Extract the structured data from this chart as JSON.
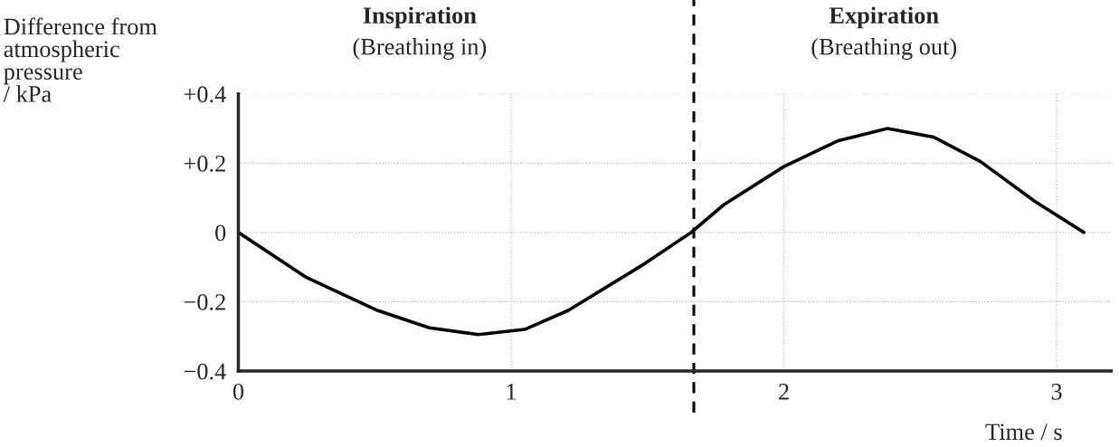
{
  "chart_data": {
    "type": "line",
    "ylabel": "Difference from\natmospheric\npressure\n/ kPa",
    "xlabel": "Time / s",
    "annotations": [
      "Inspiration\n(Breathing in)",
      "Expiration\n(Breathing out)"
    ],
    "x": [
      0,
      0.25,
      0.51,
      0.7,
      0.88,
      1.05,
      1.21,
      1.49,
      1.66,
      1.78,
      2.0,
      2.2,
      2.38,
      2.55,
      2.72,
      2.92,
      3.1
    ],
    "series": [
      {
        "color": "#000000",
        "values": [
          0,
          -0.13,
          -0.225,
          -0.275,
          -0.295,
          -0.28,
          -0.225,
          -0.09,
          0,
          0.08,
          0.19,
          0.265,
          0.3,
          0.275,
          0.205,
          0.09,
          0
        ]
      }
    ],
    "xlim": [
      0,
      3.2
    ],
    "ylim": [
      -0.4,
      0.4
    ],
    "xticks": [
      0,
      1,
      2,
      3
    ],
    "yticks": [
      {
        "value": 0.4,
        "label": "+0.4"
      },
      {
        "value": 0.2,
        "label": "+0.2"
      },
      0,
      {
        "value": -0.2,
        "label": "−0.2"
      },
      {
        "value": -0.4,
        "label": "−0.4"
      }
    ],
    "ref_lines": [
      {
        "axis": "x",
        "value": 1.67,
        "color": "#000000",
        "line_style": "dashed"
      }
    ],
    "grid": true,
    "line_style": "solid",
    "marker": "none"
  }
}
